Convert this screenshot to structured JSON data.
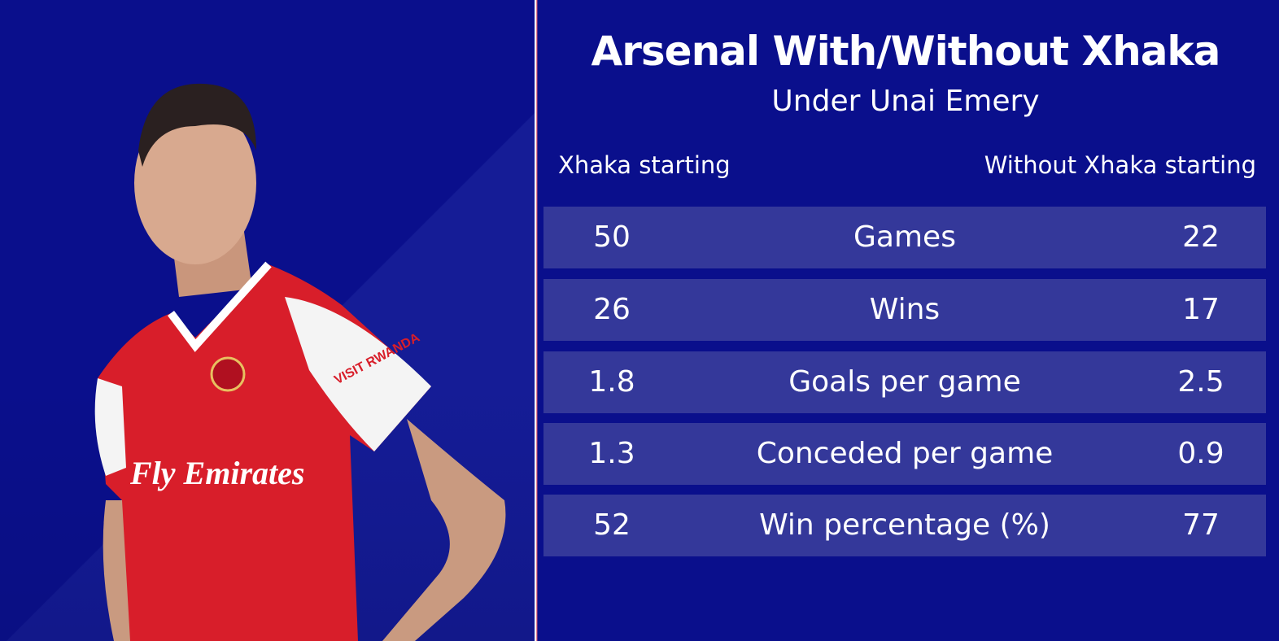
{
  "title": "Arsenal With/Without Xhaka",
  "subtitle": "Under Unai Emery",
  "columns": {
    "left": "Xhaka starting",
    "right": "Without Xhaka starting"
  },
  "rows": [
    {
      "label": "Games",
      "with": "50",
      "without": "22"
    },
    {
      "label": "Wins",
      "with": "26",
      "without": "17"
    },
    {
      "label": "Goals per game",
      "with": "1.8",
      "without": "2.5"
    },
    {
      "label": "Conceded per game",
      "with": "1.3",
      "without": "0.9"
    },
    {
      "label": "Win percentage (%)",
      "with": "52",
      "without": "77"
    }
  ],
  "player_image": {
    "shirt_sponsor": "Fly Emirates",
    "sleeve_sponsor": "VISIT RWANDA"
  },
  "colors": {
    "background": "#0a0f8c",
    "row": "#34389a",
    "shirt": "#d81e2a"
  }
}
